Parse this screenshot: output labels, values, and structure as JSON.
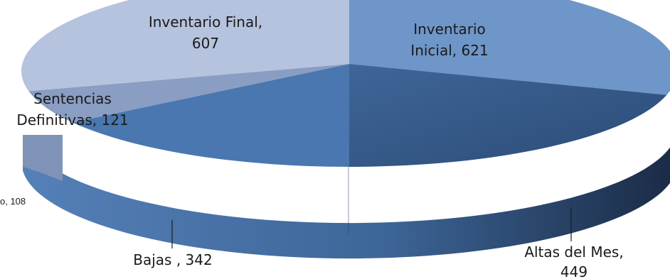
{
  "chart_data": {
    "type": "pie",
    "style": "3d",
    "title": "",
    "categories": [
      "Inventario Inicial",
      "Altas del Mes",
      "Bajas",
      "Sentencias Definitivas",
      "Inventario Final"
    ],
    "values": [
      621,
      449,
      342,
      121,
      607
    ],
    "extra_labels": [
      {
        "text_visible": "o, 108",
        "value": 108
      }
    ],
    "labels": {
      "inventario_inicial": {
        "line1": "Inventario",
        "line2": "Inicial, 621"
      },
      "altas_del_mes": {
        "line1": "Altas del Mes,",
        "line2": "449"
      },
      "bajas": {
        "line1": "Bajas , 342"
      },
      "sentencias": {
        "line1": "Sentencias",
        "line2": "Definitivas, 121"
      },
      "inventario_final": {
        "line1": "Inventario Final,",
        "line2": "607"
      },
      "truncated": {
        "line1": "o, 108"
      }
    },
    "colors": {
      "inventario_inicial": "#6f96c8",
      "altas_del_mes": "#2e4f7c",
      "bajas": "#4a77b0",
      "sentencias": "#8a9dc2",
      "inventario_final": "#b6c3de"
    },
    "legend": "none"
  }
}
